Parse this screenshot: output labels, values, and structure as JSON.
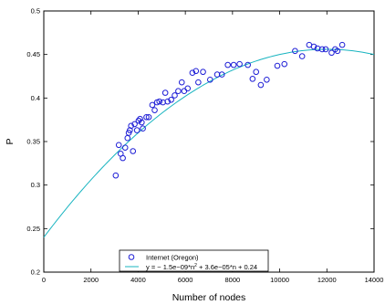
{
  "chart_data": {
    "type": "scatter",
    "xlabel": "Number of nodes",
    "ylabel": "P",
    "xlim": [
      0,
      14000
    ],
    "ylim": [
      0.2,
      0.5
    ],
    "xticks": [
      0,
      2000,
      4000,
      6000,
      8000,
      10000,
      12000,
      14000
    ],
    "yticks": [
      0.2,
      0.25,
      0.3,
      0.35,
      0.4,
      0.45,
      0.5
    ],
    "grid": false,
    "legend_position": "bottom-center",
    "legend": {
      "scatter_label": "Internet (Oregon)",
      "fit_label_parts": [
        "y = − 1.5e−09*n",
        "2",
        " + 3.6e−05*n + 0.24"
      ]
    },
    "colors": {
      "points": "#1f1fd6",
      "fit": "#18b4c0"
    },
    "series": [
      {
        "kind": "points",
        "x": [
          3050,
          3180,
          3260,
          3350,
          3450,
          3550,
          3600,
          3650,
          3700,
          3780,
          3850,
          3950,
          4020,
          4080,
          4150,
          4200,
          4350,
          4450,
          4600,
          4700,
          4800,
          4900,
          5050,
          5150,
          5250,
          5400,
          5550,
          5700,
          5850,
          5950,
          6100,
          6300,
          6450,
          6550,
          6750,
          7050,
          7350,
          7550,
          7800,
          8050,
          8300,
          8650,
          8850,
          9000,
          9200,
          9450,
          9900,
          10200,
          10650,
          10950,
          11250,
          11450,
          11600,
          11800,
          11950,
          12200,
          12350,
          12450,
          12650
        ],
        "y": [
          0.311,
          0.346,
          0.336,
          0.331,
          0.343,
          0.354,
          0.36,
          0.363,
          0.368,
          0.339,
          0.37,
          0.363,
          0.374,
          0.376,
          0.372,
          0.365,
          0.378,
          0.378,
          0.392,
          0.386,
          0.395,
          0.396,
          0.395,
          0.406,
          0.396,
          0.398,
          0.403,
          0.408,
          0.418,
          0.408,
          0.411,
          0.429,
          0.431,
          0.418,
          0.43,
          0.421,
          0.427,
          0.427,
          0.438,
          0.438,
          0.439,
          0.438,
          0.422,
          0.43,
          0.415,
          0.421,
          0.437,
          0.439,
          0.454,
          0.448,
          0.461,
          0.459,
          0.457,
          0.456,
          0.456,
          0.452,
          0.456,
          0.454,
          0.461
        ]
      },
      {
        "kind": "fit",
        "coefficients": {
          "a": -1.5e-09,
          "b": 3.6e-05,
          "c": 0.24
        }
      }
    ]
  }
}
